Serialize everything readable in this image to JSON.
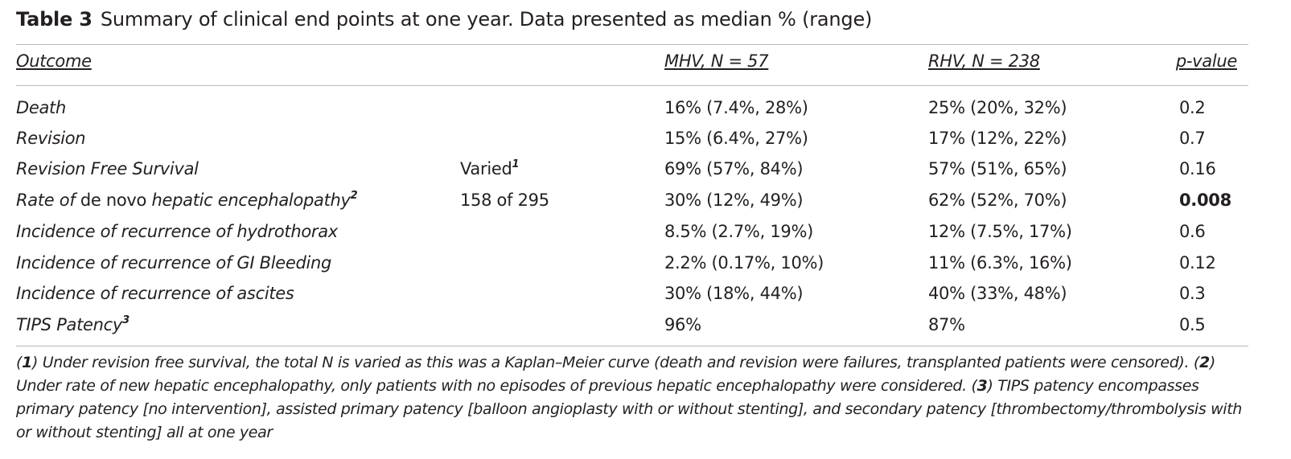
{
  "caption": {
    "label": "Table 3",
    "text": "Summary of clinical end points at one year. Data presented as median % (range)"
  },
  "columns": {
    "outcome": "Outcome",
    "mhv": "MHV, N = 57",
    "rhv": "RHV, N = 238",
    "pvalue": "p-value"
  },
  "rows": [
    {
      "outcome": "Death",
      "note": "",
      "mhv": "16% (7.4%, 28%)",
      "rhv": "25% (20%, 32%)",
      "p": "0.2"
    },
    {
      "outcome": "Revision",
      "note": "",
      "mhv": "15% (6.4%, 27%)",
      "rhv": "17% (12%, 22%)",
      "p": "0.7"
    },
    {
      "outcome": "Revision Free Survival",
      "note": "Varied",
      "note_sup": "1",
      "mhv": "69% (57%, 84%)",
      "rhv": "57% (51%, 65%)",
      "p": "0.16"
    },
    {
      "outcome_a": "Rate of",
      "outcome_b": "de novo",
      "outcome_c": "hepatic encephalopathy",
      "outcome_sup": "2",
      "note": "158 of 295",
      "mhv": "30% (12%, 49%)",
      "rhv": "62% (52%, 70%)",
      "p": "0.008",
      "p_bold": true
    },
    {
      "outcome": "Incidence of recurrence of hydrothorax",
      "note": "",
      "mhv": "8.5% (2.7%, 19%)",
      "rhv": "12% (7.5%, 17%)",
      "p": "0.6"
    },
    {
      "outcome": "Incidence of recurrence of GI Bleeding",
      "note": "",
      "mhv": "2.2% (0.17%, 10%)",
      "rhv": "11% (6.3%, 16%)",
      "p": "0.12"
    },
    {
      "outcome": "Incidence of recurrence of ascites",
      "note": "",
      "mhv": "30% (18%, 44%)",
      "rhv": "40% (33%, 48%)",
      "p": "0.3"
    },
    {
      "outcome": "TIPS Patency",
      "outcome_sup": "3",
      "note": "",
      "mhv": "96%",
      "rhv": "87%",
      "p": "0.5"
    }
  ],
  "footnote": {
    "n1": "1",
    "t1": ") Under revision free survival, the total N is varied as this was a Kaplan–Meier curve (death and revision were failures, transplanted patients were censored). (",
    "n2": "2",
    "t2": ") Under rate of new hepatic encephalopathy, only patients with no episodes of previous hepatic encephalopathy were considered. (",
    "n3": "3",
    "t3": ") TIPS patency encompasses primary patency [no intervention], assisted primary patency [balloon angioplasty with or without stenting], and secondary patency [thrombectomy/thrombolysis with or without stenting] all at one year"
  }
}
